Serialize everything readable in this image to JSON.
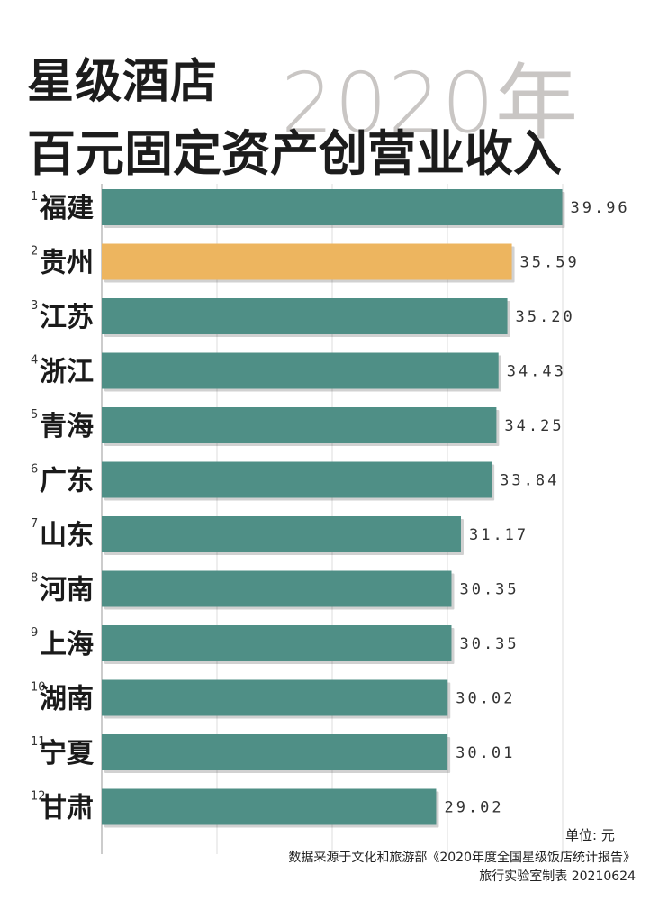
{
  "title": {
    "line1": "星级酒店",
    "line2": "百元固定资产创营业收入",
    "year": "2020年"
  },
  "unit_label": "单位: 元",
  "footer": {
    "source": "数据来源于文化和旅游部《2020年度全国星级饭店统计报告》",
    "credit": "旅行实验室制表 20210624"
  },
  "colors": {
    "bar": "#4f8f86",
    "highlight": "#edb55f",
    "grid": "#dddddd"
  },
  "chart_data": {
    "type": "bar",
    "orientation": "horizontal",
    "categories": [
      "福建",
      "贵州",
      "江苏",
      "浙江",
      "青海",
      "广东",
      "山东",
      "河南",
      "上海",
      "湖南",
      "宁夏",
      "甘肃"
    ],
    "ranks": [
      "1",
      "2",
      "3",
      "4",
      "5",
      "6",
      "7",
      "8",
      "9",
      "10",
      "11",
      "12"
    ],
    "values": [
      39.96,
      35.59,
      35.2,
      34.43,
      34.25,
      33.84,
      31.17,
      30.35,
      30.35,
      30.02,
      30.01,
      29.02
    ],
    "value_labels": [
      "39.96",
      "35.59",
      "35.20",
      "34.43",
      "34.25",
      "33.84",
      "31.17",
      "30.35",
      "30.35",
      "30.02",
      "30.01",
      "29.02"
    ],
    "highlight": "贵州",
    "xlim": [
      0,
      40
    ],
    "grid": true
  }
}
